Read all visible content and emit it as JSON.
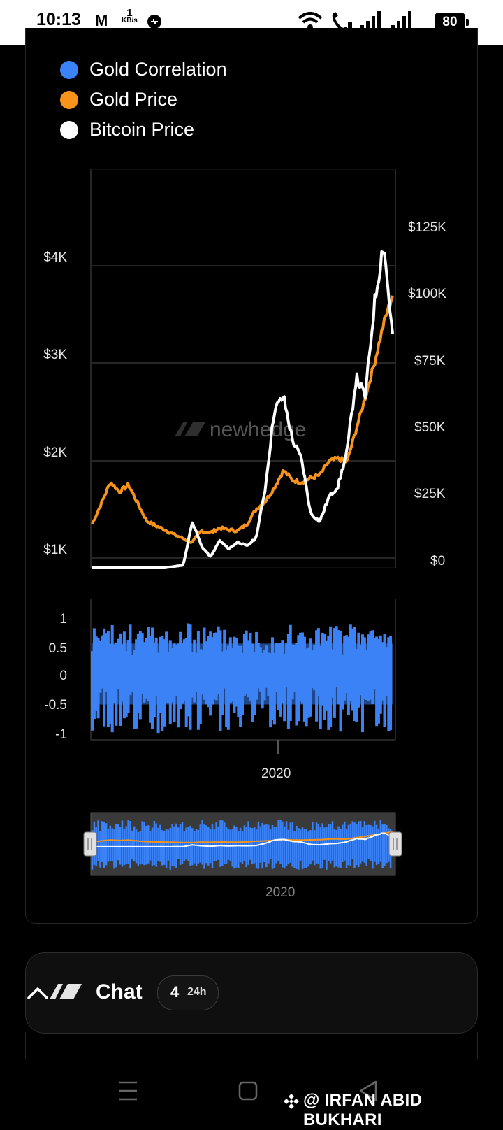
{
  "status_bar": {
    "time": "10:13",
    "mail_icon": "M",
    "speed_value": "1",
    "speed_unit": "KB/s",
    "battery": "80"
  },
  "chart": {
    "legend": [
      {
        "label": "Gold Correlation",
        "color": "#3b82f6"
      },
      {
        "label": "Gold Price",
        "color": "#f7931a"
      },
      {
        "label": "Bitcoin Price",
        "color": "#ffffff"
      }
    ],
    "watermark_text": "newhedge",
    "left_axis_ticks": [
      "$4K",
      "$3K",
      "$2K",
      "$1K"
    ],
    "right_axis_ticks": [
      "$125K",
      "$100K",
      "$75K",
      "$50K",
      "$25K",
      "$0"
    ],
    "correlation_ticks": [
      "1",
      "0.5",
      "0",
      "-0.5",
      "-1"
    ],
    "x_tick": "2020",
    "navigator_x_tick": "2020"
  },
  "chart_data": {
    "type": "line",
    "series": [
      {
        "name": "Gold Price",
        "axis": "left",
        "color": "#f7931a",
        "values": [
          1350,
          1560,
          1780,
          1680,
          1750,
          1560,
          1380,
          1330,
          1290,
          1240,
          1200,
          1160,
          1280,
          1260,
          1310,
          1290,
          1280,
          1350,
          1500,
          1580,
          1720,
          1900,
          1800,
          1780,
          1820,
          1850,
          1990,
          2020,
          1990,
          2320,
          2650,
          3000,
          3400,
          3700
        ]
      },
      {
        "name": "Bitcoin Price",
        "axis": "right",
        "color": "#ffffff",
        "values": [
          0,
          0,
          0,
          0,
          0,
          0,
          0,
          0,
          0,
          500,
          1000,
          17000,
          8000,
          4000,
          10000,
          7000,
          9500,
          8000,
          11000,
          29000,
          58000,
          63000,
          47000,
          40000,
          20000,
          17000,
          26000,
          30000,
          43000,
          70000,
          63000,
          97000,
          120000,
          85000
        ]
      },
      {
        "name": "Gold Correlation",
        "axis": "correlation",
        "color": "#3b82f6",
        "range": [
          -1,
          1
        ]
      }
    ],
    "left_ylim": [
      1000,
      4000
    ],
    "right_ylim": [
      0,
      125000
    ],
    "correlation_ylim": [
      -1,
      1
    ],
    "x_ticks": [
      "2020"
    ]
  },
  "chat": {
    "title": "Chat",
    "count": "4",
    "period": "24h"
  },
  "watermark": "@ IRFAN ABID BUKHARI"
}
